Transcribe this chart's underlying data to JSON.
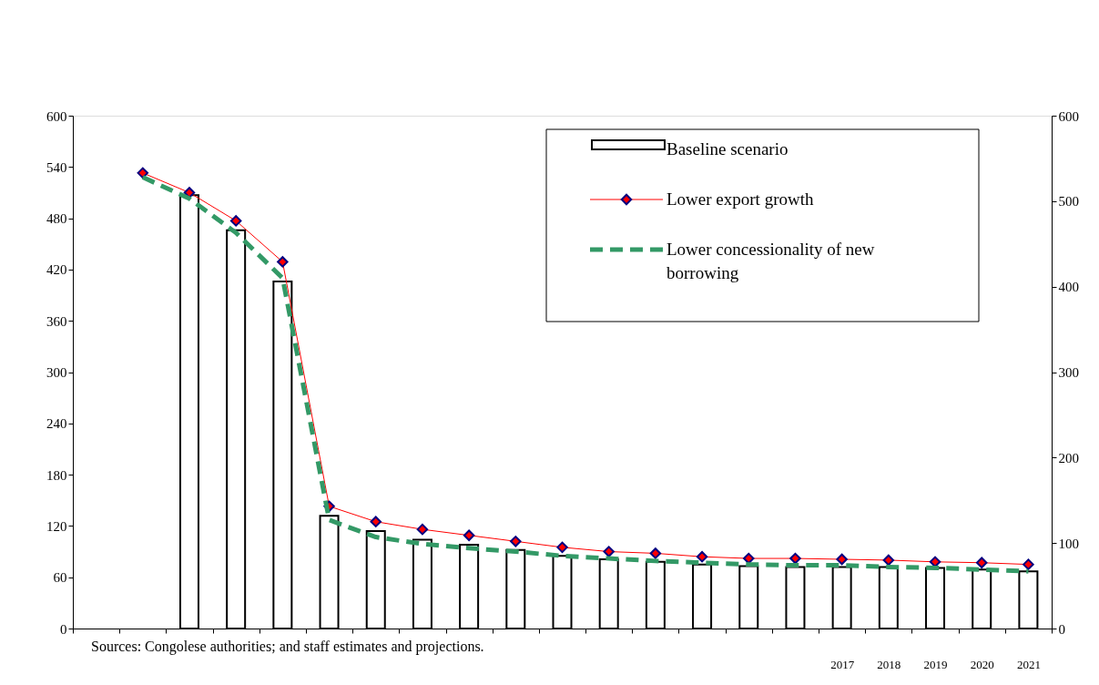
{
  "chart_data": {
    "type": "bar",
    "categories": [
      null,
      null,
      null,
      null,
      null,
      null,
      null,
      null,
      null,
      null,
      null,
      null,
      null,
      null,
      null,
      null,
      "2017",
      "2018",
      "2019",
      "2020",
      "2021"
    ],
    "series": [
      {
        "name": "Baseline scenario",
        "color": "#ffffff",
        "values": [
          null,
          null,
          507,
          466,
          406,
          132,
          114,
          104,
          98,
          92,
          85,
          81,
          78,
          75,
          73,
          72,
          72,
          72,
          71,
          69,
          67
        ]
      },
      {
        "name": "Lower export growth",
        "type": "line",
        "axis": "y2",
        "color": "#ff0000",
        "marker": "diamond",
        "line_style": "solid",
        "values": [
          null,
          533,
          510,
          477,
          429,
          143,
          125,
          116,
          109,
          102,
          95,
          90,
          88,
          84,
          82,
          82,
          81,
          80,
          78,
          77,
          75
        ]
      },
      {
        "name": "Lower concessionality of new borrowing",
        "type": "line",
        "axis": "y2",
        "color": "#339966",
        "marker": "none",
        "line_style": "dashed",
        "values": [
          null,
          528,
          503,
          463,
          410,
          127,
          107,
          99,
          94,
          90,
          85,
          82,
          79,
          77,
          75,
          74,
          74,
          72,
          71,
          69,
          67
        ]
      }
    ],
    "ylim": [
      0,
      600
    ],
    "yticks": [
      0,
      60,
      120,
      180,
      240,
      300,
      360,
      420,
      480,
      540,
      600
    ],
    "y2lim": [
      0,
      600
    ],
    "y2ticks": [
      0,
      100,
      200,
      300,
      400,
      500,
      600
    ],
    "grid": false,
    "legend": "top right",
    "annotations": [
      "Sources: Congolese authorities; and staff estimates and projections."
    ]
  }
}
